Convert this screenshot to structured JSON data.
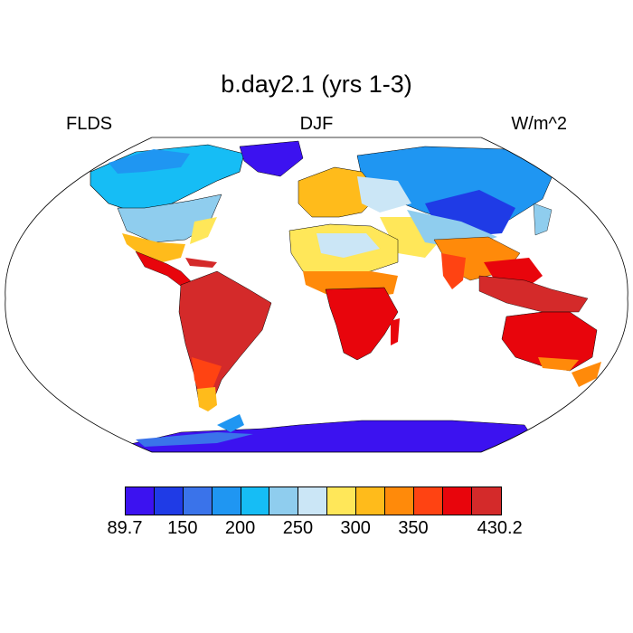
{
  "title": "b.day2.1 (yrs 1-3)",
  "left_label": "FLDS",
  "center_label": "DJF",
  "right_label": "W/m^2",
  "colorbar": {
    "colors": [
      "#3c12f0",
      "#1f3be6",
      "#3a73ea",
      "#1f96f2",
      "#16bdf5",
      "#8fcdee",
      "#cbe6f6",
      "#ffe759",
      "#ffbb1b",
      "#ff8a0a",
      "#ff4312",
      "#e8050c",
      "#d42a2a"
    ],
    "labels": [
      {
        "text": "89.7",
        "pos": 0
      },
      {
        "text": "150",
        "pos": 2
      },
      {
        "text": "200",
        "pos": 4
      },
      {
        "text": "250",
        "pos": 6
      },
      {
        "text": "300",
        "pos": 8
      },
      {
        "text": "350",
        "pos": 10
      },
      {
        "text": "430.2",
        "pos": 13
      }
    ]
  },
  "projection": "Robinson"
}
